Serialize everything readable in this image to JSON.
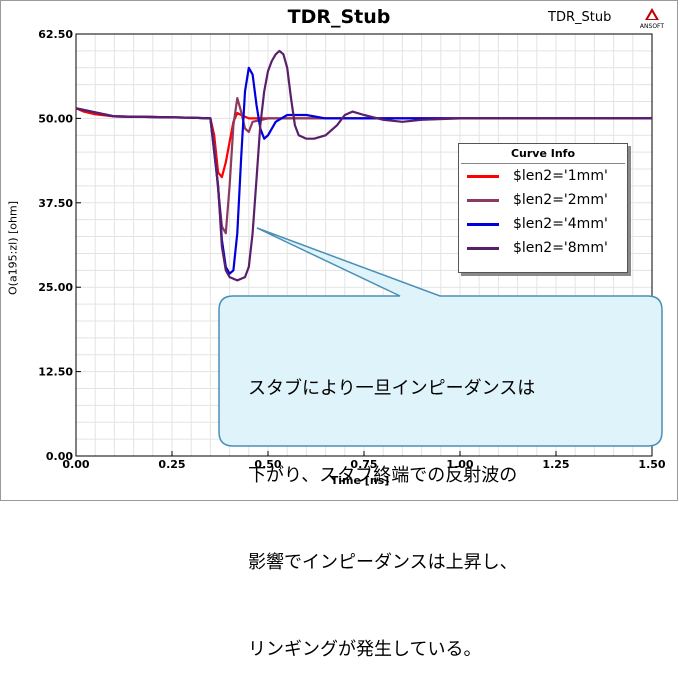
{
  "chart_data": {
    "type": "line",
    "title": "TDR_Stub",
    "corner_title": "TDR_Stub",
    "logo_text": "ANSOFT",
    "xlabel": "Time [ns]",
    "ylabel": "O(a195:zl) [ohm]",
    "xlim": [
      0,
      1.5
    ],
    "ylim": [
      0,
      62.5
    ],
    "x_ticks": [
      "0.00",
      "0.25",
      "0.50",
      "0.75",
      "1.00",
      "1.25",
      "1.50"
    ],
    "y_ticks": [
      "0.00",
      "12.50",
      "25.00",
      "37.50",
      "50.00",
      "62.50"
    ],
    "grid": true,
    "legend_title": "Curve Info",
    "legend_position": "right",
    "series": [
      {
        "name": "$len2='1mm'",
        "color": "#ff0000",
        "x": [
          0,
          0.02,
          0.05,
          0.1,
          0.2,
          0.3,
          0.35,
          0.36,
          0.37,
          0.38,
          0.39,
          0.4,
          0.41,
          0.42,
          0.43,
          0.45,
          0.5,
          0.6,
          0.8,
          1.0,
          1.2,
          1.5
        ],
        "y": [
          51.5,
          51.0,
          50.6,
          50.3,
          50.2,
          50.1,
          50.0,
          47.5,
          42.0,
          41.3,
          43.5,
          46.5,
          49.5,
          50.8,
          50.5,
          50.0,
          50.0,
          50.0,
          50.0,
          50.0,
          50.0,
          50.0
        ]
      },
      {
        "name": "$len2='2mm'",
        "color": "#8b3a62",
        "x": [
          0,
          0.1,
          0.2,
          0.3,
          0.35,
          0.36,
          0.37,
          0.38,
          0.39,
          0.4,
          0.41,
          0.42,
          0.43,
          0.44,
          0.45,
          0.46,
          0.5,
          0.6,
          0.8,
          1.0,
          1.5
        ],
        "y": [
          51.5,
          50.3,
          50.2,
          50.1,
          50.0,
          46.0,
          39.5,
          34.0,
          33.0,
          40.0,
          49.0,
          53.0,
          51.0,
          48.5,
          48.0,
          49.5,
          50.0,
          50.0,
          50.0,
          50.0,
          50.0
        ]
      },
      {
        "name": "$len2='4mm'",
        "color": "#0000dd",
        "x": [
          0,
          0.1,
          0.2,
          0.3,
          0.35,
          0.37,
          0.38,
          0.39,
          0.4,
          0.41,
          0.42,
          0.43,
          0.44,
          0.45,
          0.46,
          0.47,
          0.48,
          0.49,
          0.5,
          0.52,
          0.55,
          0.6,
          0.65,
          0.7,
          0.8,
          1.0,
          1.5
        ],
        "y": [
          51.5,
          50.3,
          50.2,
          50.1,
          50.0,
          40.0,
          32.0,
          28.0,
          27.0,
          27.5,
          33.0,
          44.0,
          54.0,
          57.5,
          56.5,
          52.0,
          48.5,
          47.0,
          47.5,
          49.5,
          50.5,
          50.5,
          50.0,
          50.0,
          50.0,
          50.0,
          50.0
        ]
      },
      {
        "name": "$len2='8mm'",
        "color": "#5a1f6a",
        "x": [
          0,
          0.1,
          0.2,
          0.3,
          0.35,
          0.37,
          0.38,
          0.39,
          0.4,
          0.42,
          0.44,
          0.45,
          0.46,
          0.47,
          0.48,
          0.49,
          0.5,
          0.51,
          0.52,
          0.53,
          0.54,
          0.55,
          0.56,
          0.57,
          0.58,
          0.6,
          0.62,
          0.65,
          0.68,
          0.7,
          0.72,
          0.75,
          0.8,
          0.85,
          0.9,
          1.0,
          1.2,
          1.5
        ],
        "y": [
          51.5,
          50.3,
          50.2,
          50.1,
          50.0,
          40.0,
          31.0,
          27.5,
          26.5,
          26.0,
          26.5,
          28.0,
          33.0,
          41.0,
          49.0,
          54.0,
          57.0,
          58.5,
          59.5,
          60.0,
          59.5,
          57.5,
          53.0,
          49.0,
          47.5,
          47.0,
          47.0,
          47.5,
          49.0,
          50.5,
          51.0,
          50.5,
          49.8,
          49.5,
          49.8,
          50.0,
          50.0,
          50.0
        ]
      }
    ]
  },
  "callout": {
    "lines": [
      "スタブにより一旦インピーダンスは",
      "下がり、スタブ終端での反射波の",
      "影響でインピーダンスは上昇し、",
      "リンギングが発生している。"
    ]
  }
}
